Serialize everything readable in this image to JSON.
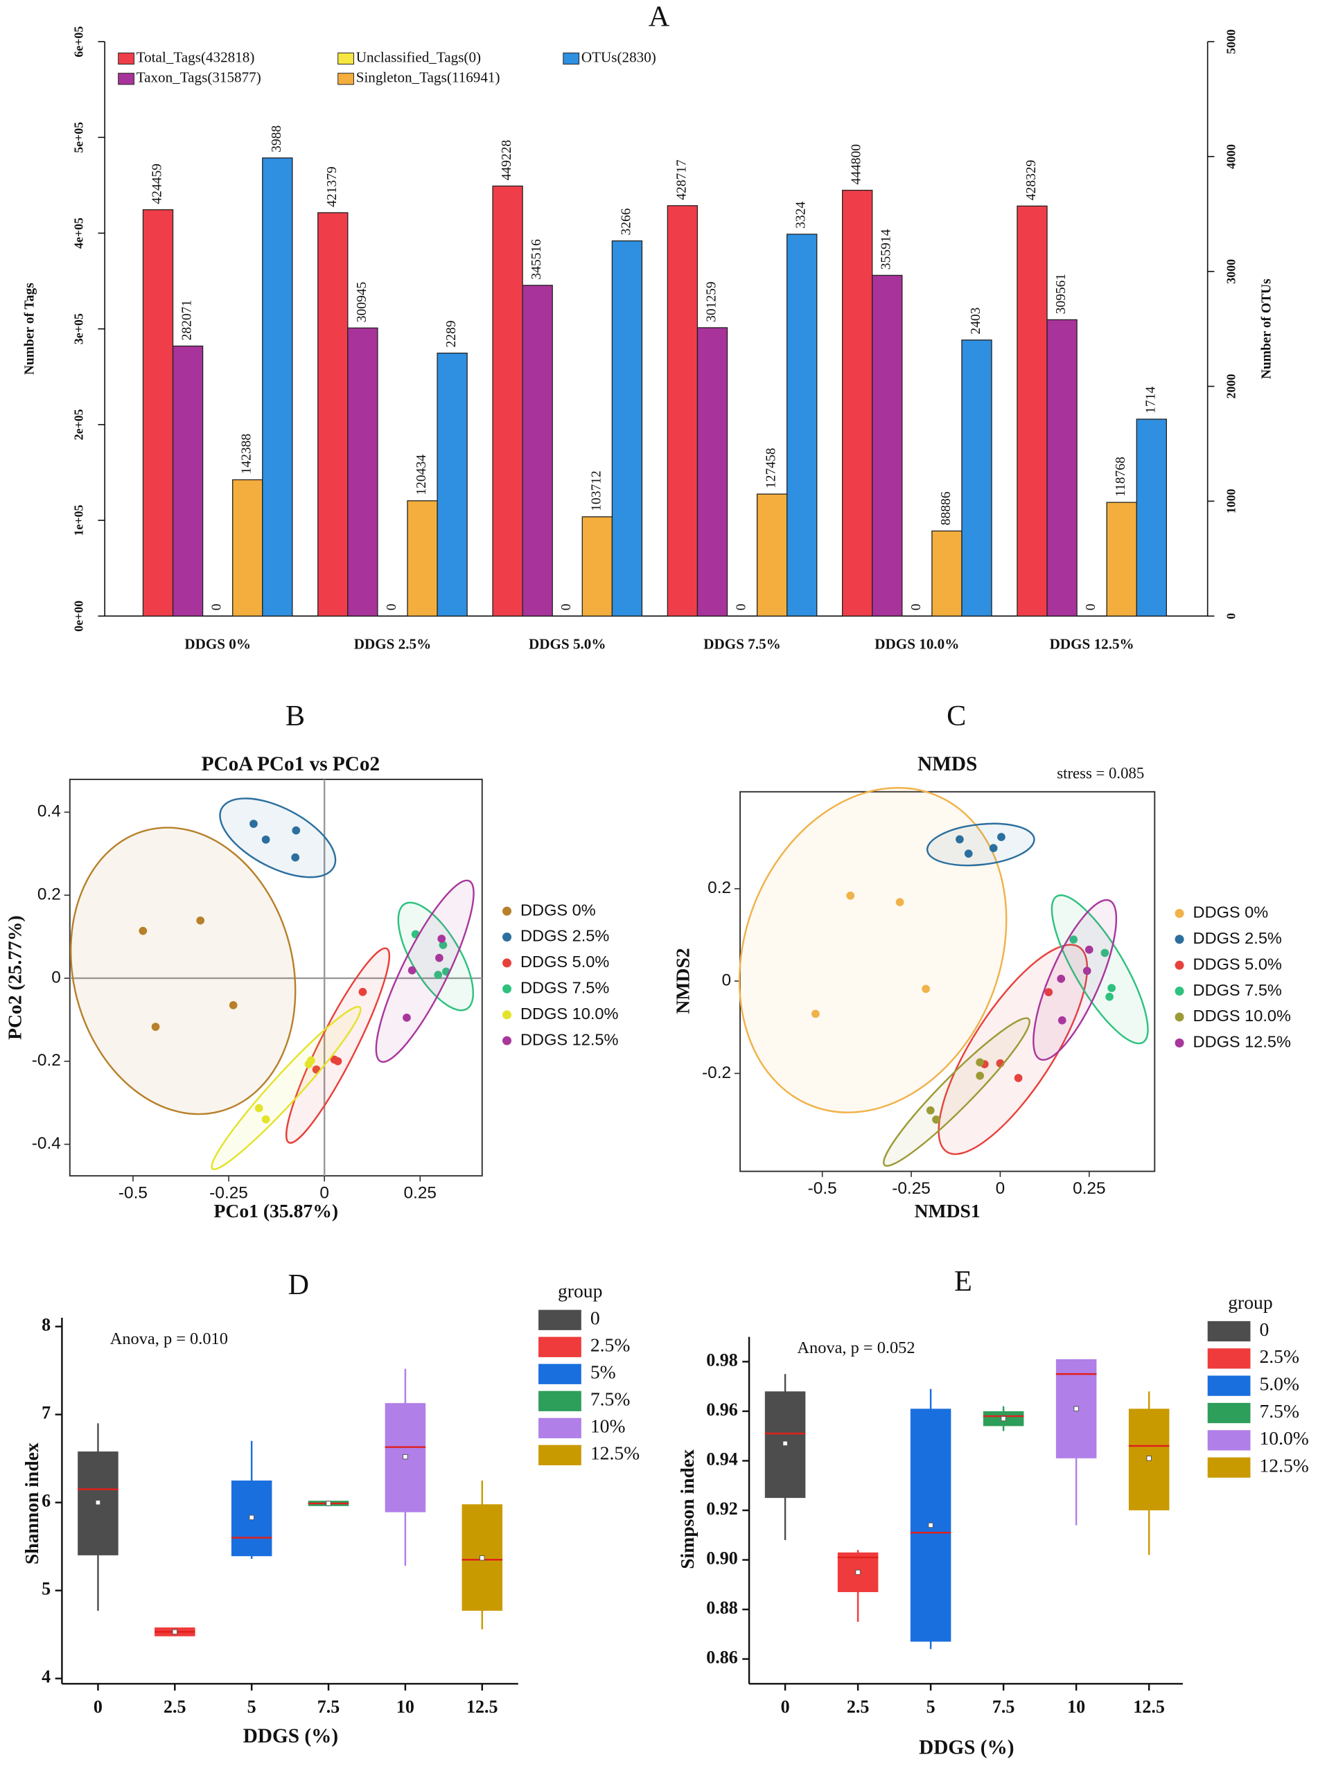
{
  "chart_data": [
    {
      "type": "bar",
      "panel_label": "A",
      "ylabel": "Number of Tags",
      "y2label": "Number of OTUs",
      "categories": [
        "DDGS 0%",
        "DDGS 2.5%",
        "DDGS 5.0%",
        "DDGS 7.5%",
        "DDGS 10.0%",
        "DDGS 12.5%"
      ],
      "series": [
        {
          "name": "Total_Tags(432818)",
          "color": "#ef3e4a",
          "values": [
            424459,
            421379,
            449228,
            428717,
            444800,
            428329
          ]
        },
        {
          "name": "Taxon_Tags(315877)",
          "color": "#a8339a",
          "values": [
            282071,
            300945,
            345516,
            301259,
            355914,
            309561
          ]
        },
        {
          "name": "Unclassified_Tags(0)",
          "color": "#f5e642",
          "values": [
            0,
            0,
            0,
            0,
            0,
            0
          ]
        },
        {
          "name": "Singleton_Tags(116941)",
          "color": "#f4ae3d",
          "values": [
            142388,
            120434,
            103712,
            127458,
            88886,
            118768
          ]
        },
        {
          "name": "OTUs(2830)",
          "color": "#2f8fe0",
          "axis": "y2",
          "values": [
            3988,
            2289,
            3266,
            3324,
            2403,
            1714
          ]
        }
      ],
      "ylim": [
        0,
        600000
      ],
      "yticks": [
        {
          "value": 0,
          "label": "0e+00"
        },
        {
          "value": 100000,
          "label": "1e+05"
        },
        {
          "value": 200000,
          "label": "2e+05"
        },
        {
          "value": 300000,
          "label": "3e+05"
        },
        {
          "value": 400000,
          "label": "4e+05"
        },
        {
          "value": 500000,
          "label": "5e+05"
        },
        {
          "value": 600000,
          "label": "6e+05"
        }
      ],
      "y2lim": [
        0,
        5000
      ],
      "y2ticks": [
        0,
        1000,
        2000,
        3000,
        4000,
        5000
      ]
    },
    {
      "type": "scatter",
      "panel_label": "B",
      "title": "PCoA PCo1 vs PCo2",
      "xlabel": "PCo1 (35.87%)",
      "ylabel": "PCo2 (25.77%)",
      "xlim": [
        -0.665,
        0.412
      ],
      "ylim": [
        -0.476,
        0.479
      ],
      "xticks": [
        -0.5,
        -0.25,
        0,
        0.25
      ],
      "yticks": [
        -0.4,
        -0.2,
        0,
        0.2,
        0.4
      ],
      "zero_lines": true,
      "series": [
        {
          "name": "DDGS 0%",
          "color": "#b8802a",
          "x": [
            -0.474,
            -0.324,
            -0.238,
            -0.441
          ],
          "y": [
            0.114,
            0.139,
            -0.065,
            -0.117
          ]
        },
        {
          "name": "DDGS 2.5%",
          "color": "#2b6f9e",
          "x": [
            -0.185,
            -0.153,
            -0.074,
            -0.076
          ],
          "y": [
            0.372,
            0.334,
            0.356,
            0.291
          ]
        },
        {
          "name": "DDGS 5.0%",
          "color": "#e8413c",
          "x": [
            0.1,
            0.026,
            0.035,
            -0.021
          ],
          "y": [
            -0.033,
            -0.196,
            -0.2,
            -0.22
          ]
        },
        {
          "name": "DDGS 7.5%",
          "color": "#2ec27e",
          "x": [
            0.238,
            0.297,
            0.318,
            0.31
          ],
          "y": [
            0.106,
            0.008,
            0.016,
            0.08
          ]
        },
        {
          "name": "DDGS 10.0%",
          "color": "#e3e32a",
          "x": [
            -0.041,
            -0.035,
            -0.171,
            -0.153
          ],
          "y": [
            -0.207,
            -0.198,
            -0.313,
            -0.34
          ]
        },
        {
          "name": "DDGS 12.5%",
          "color": "#a8379c",
          "x": [
            0.306,
            0.3,
            0.229,
            0.215
          ],
          "y": [
            0.095,
            0.049,
            0.019,
            -0.095
          ]
        }
      ]
    },
    {
      "type": "scatter",
      "panel_label": "C",
      "title": "NMDS",
      "note": "stress = 0.085",
      "xlabel": "NMDS1",
      "ylabel": "NMDS2",
      "xlim": [
        -0.731,
        0.434
      ],
      "ylim": [
        -0.412,
        0.41
      ],
      "xticks": [
        -0.5,
        -0.25,
        0,
        0.25
      ],
      "yticks": [
        -0.2,
        0,
        0.2
      ],
      "zero_lines": false,
      "series": [
        {
          "name": "DDGS 0%",
          "color": "#f0b24a",
          "x": [
            -0.421,
            -0.282,
            -0.209,
            -0.519
          ],
          "y": [
            0.185,
            0.171,
            -0.017,
            -0.071
          ]
        },
        {
          "name": "DDGS 2.5%",
          "color": "#2b6f9e",
          "x": [
            -0.114,
            -0.089,
            -0.019,
            0.003
          ],
          "y": [
            0.307,
            0.276,
            0.288,
            0.312
          ]
        },
        {
          "name": "DDGS 5.0%",
          "color": "#e8413c",
          "x": [
            -0.044,
            0,
            0.051,
            0.136
          ],
          "y": [
            -0.18,
            -0.178,
            -0.21,
            -0.024
          ]
        },
        {
          "name": "DDGS 7.5%",
          "color": "#2ec27e",
          "x": [
            0.206,
            0.294,
            0.313,
            0.307
          ],
          "y": [
            0.09,
            0.061,
            -0.015,
            -0.034
          ]
        },
        {
          "name": "DDGS 10.0%",
          "color": "#9c9a35",
          "x": [
            -0.057,
            -0.057,
            -0.196,
            -0.18
          ],
          "y": [
            -0.176,
            -0.205,
            -0.28,
            -0.3
          ]
        },
        {
          "name": "DDGS 12.5%",
          "color": "#a8379c",
          "x": [
            0.25,
            0.244,
            0.171,
            0.174
          ],
          "y": [
            0.068,
            0.022,
            0.005,
            -0.085
          ]
        }
      ]
    },
    {
      "type": "box",
      "panel_label": "D",
      "note": "Anova, p = 0.010",
      "xlabel": "DDGS (%)",
      "ylabel": "Shannon index",
      "legend_title": "group",
      "categories": [
        "0",
        "2.5",
        "5",
        "7.5",
        "10",
        "12.5"
      ],
      "ylim": [
        3.94,
        8.1
      ],
      "yticks": [
        4,
        5,
        6,
        7,
        8
      ],
      "series": [
        {
          "name": "0",
          "color": "#4d4d4d",
          "min": 4.77,
          "q1": 5.4,
          "median": 6.15,
          "q3": 6.58,
          "max": 6.9,
          "mean": 6.0
        },
        {
          "name": "2.5%",
          "color": "#ef3b3b",
          "min": 4.48,
          "q1": 4.48,
          "median": 4.53,
          "q3": 4.58,
          "max": 4.58,
          "mean": 4.53
        },
        {
          "name": "5%",
          "color": "#1a6fdf",
          "min": 5.36,
          "q1": 5.39,
          "median": 5.6,
          "q3": 6.25,
          "max": 6.7,
          "mean": 5.83
        },
        {
          "name": "7.5%",
          "color": "#2e9e5b",
          "min": 5.96,
          "q1": 5.96,
          "median": 5.99,
          "q3": 6.02,
          "max": 6.02,
          "mean": 5.99
        },
        {
          "name": "10%",
          "color": "#b07fe8",
          "min": 5.28,
          "q1": 5.89,
          "median": 6.63,
          "q3": 7.13,
          "max": 7.52,
          "mean": 6.52
        },
        {
          "name": "12.5%",
          "color": "#c99a00",
          "min": 4.56,
          "q1": 4.77,
          "median": 5.35,
          "q3": 5.98,
          "max": 6.25,
          "mean": 5.37
        }
      ]
    },
    {
      "type": "box",
      "panel_label": "E",
      "note": "Anova, p = 0.052",
      "xlabel": "DDGS (%)",
      "ylabel": "Simpson index",
      "legend_title": "group",
      "categories": [
        "0",
        "2.5",
        "5",
        "7.5",
        "10",
        "12.5"
      ],
      "ylim": [
        0.85,
        0.99
      ],
      "yticks": [
        0.86,
        0.88,
        {
          "value": 0.9,
          "label": "0.90"
        },
        0.92,
        0.94,
        0.96,
        0.98
      ],
      "series": [
        {
          "name": "0",
          "color": "#4d4d4d",
          "min": 0.908,
          "q1": 0.925,
          "median": 0.951,
          "q3": 0.968,
          "max": 0.975,
          "mean": 0.947
        },
        {
          "name": "2.5%",
          "color": "#ef3b3b",
          "min": 0.875,
          "q1": 0.887,
          "median": 0.901,
          "q3": 0.903,
          "max": 0.904,
          "mean": 0.895
        },
        {
          "name": "5.0%",
          "color": "#1a6fdf",
          "min": 0.864,
          "q1": 0.867,
          "median": 0.911,
          "q3": 0.961,
          "max": 0.969,
          "mean": 0.914
        },
        {
          "name": "7.5%",
          "color": "#2e9e5b",
          "min": 0.952,
          "q1": 0.954,
          "median": 0.958,
          "q3": 0.96,
          "max": 0.962,
          "mean": 0.957
        },
        {
          "name": "10.0%",
          "color": "#b07fe8",
          "min": 0.914,
          "q1": 0.941,
          "median": 0.975,
          "q3": 0.981,
          "max": 0.981,
          "mean": 0.961
        },
        {
          "name": "12.5%",
          "color": "#c99a00",
          "min": 0.902,
          "q1": 0.92,
          "median": 0.946,
          "q3": 0.961,
          "max": 0.968,
          "mean": 0.941
        }
      ]
    }
  ]
}
